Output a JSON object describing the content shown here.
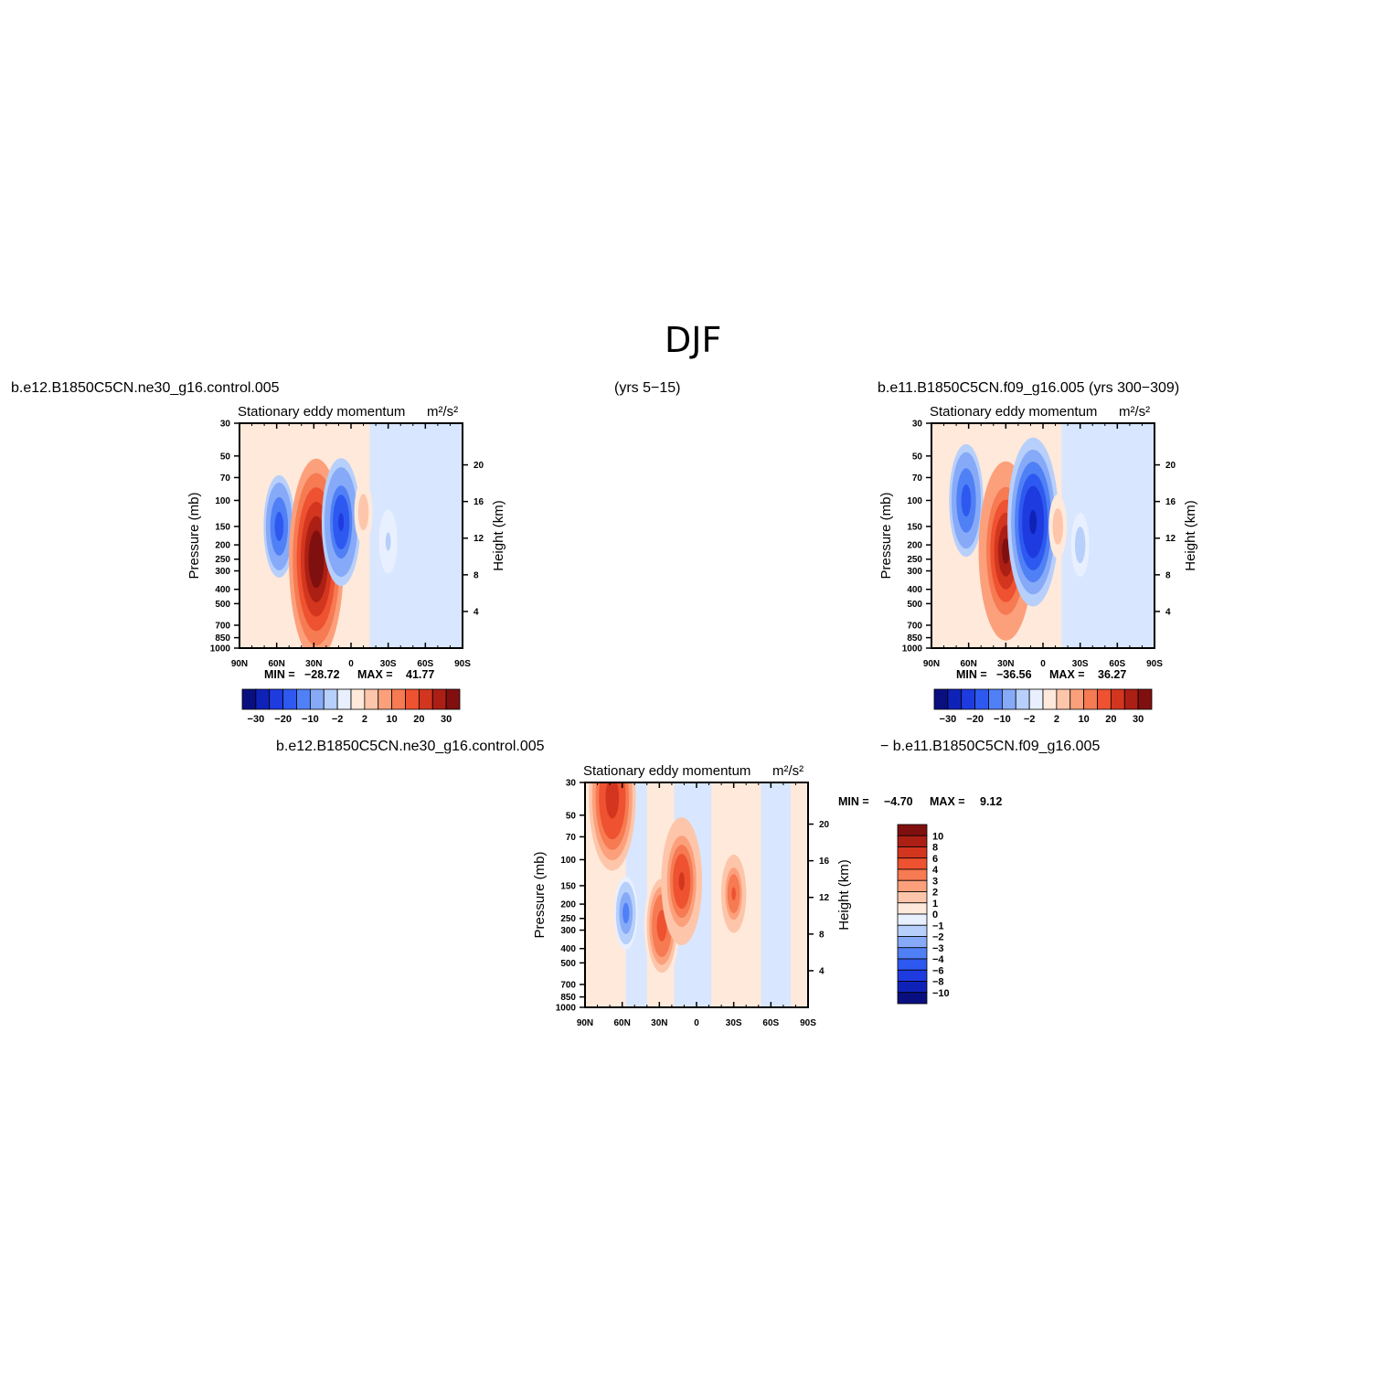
{
  "figure": {
    "title": "DJF",
    "left_case": "b.e12.B1850C5CN.ne30_g16.control.005",
    "left_years": "(yrs 5−15)",
    "right_case": "b.e11.B1850C5CN.f09_g16.005 (yrs 300−309)",
    "diff_left": "b.e12.B1850C5CN.ne30_g16.control.005",
    "diff_right": "− b.e11.B1850C5CN.f09_g16.005"
  },
  "chart_data": [
    {
      "type": "heatmap",
      "panel": "case-1",
      "title": "Stationary eddy momentum",
      "units": "m²/s²",
      "ylabel": "Pressure (mb)",
      "ylabel_right": "Height (km)",
      "x_ticks": [
        "90N",
        "60N",
        "30N",
        "0",
        "30S",
        "60S",
        "90S"
      ],
      "xlim": [
        90,
        -90
      ],
      "y_ticks": [
        30,
        50,
        70,
        100,
        150,
        200,
        250,
        300,
        400,
        500,
        700,
        850,
        1000
      ],
      "y_scale": "log",
      "ylim": [
        1000,
        30
      ],
      "height_ticks": [
        4,
        8,
        12,
        16,
        20
      ],
      "min_label": "MIN =",
      "min": "−28.72",
      "max_label": "MAX =",
      "max": "41.77",
      "colorbar": {
        "orientation": "horizontal",
        "labels": [
          "−30",
          "−20",
          "−10",
          "−2",
          "2",
          "10",
          "20",
          "30"
        ],
        "colors": [
          "#0a0f80",
          "#0f22b8",
          "#1e3be0",
          "#2e59f0",
          "#5080f5",
          "#86aaf8",
          "#b7cffb",
          "#e8f0ff",
          "#ffe9db",
          "#fdc6aa",
          "#fca07c",
          "#f67a52",
          "#ee5230",
          "#d3361e",
          "#ab1f14",
          "#801010"
        ]
      },
      "features": [
        {
          "lat": 58,
          "p": 150,
          "value": -20
        },
        {
          "lat": 28,
          "p": 250,
          "value": 40
        },
        {
          "lat": 8,
          "p": 140,
          "value": -25
        },
        {
          "lat": -10,
          "p": 120,
          "value": 4
        },
        {
          "lat": -30,
          "p": 190,
          "value": -3
        }
      ]
    },
    {
      "type": "heatmap",
      "panel": "case-2",
      "title": "Stationary eddy momentum",
      "units": "m²/s²",
      "ylabel": "Pressure (mb)",
      "ylabel_right": "Height (km)",
      "x_ticks": [
        "90N",
        "60N",
        "30N",
        "0",
        "30S",
        "60S",
        "90S"
      ],
      "xlim": [
        90,
        -90
      ],
      "y_ticks": [
        30,
        50,
        70,
        100,
        150,
        200,
        250,
        300,
        400,
        500,
        700,
        850,
        1000
      ],
      "y_scale": "log",
      "ylim": [
        1000,
        30
      ],
      "height_ticks": [
        4,
        8,
        12,
        16,
        20
      ],
      "min_label": "MIN =",
      "min": "−36.56",
      "max_label": "MAX =",
      "max": "36.27",
      "colorbar": {
        "orientation": "horizontal",
        "labels": [
          "−30",
          "−20",
          "−10",
          "−2",
          "2",
          "10",
          "20",
          "30"
        ],
        "colors": [
          "#0a0f80",
          "#0f22b8",
          "#1e3be0",
          "#2e59f0",
          "#5080f5",
          "#86aaf8",
          "#b7cffb",
          "#e8f0ff",
          "#ffe9db",
          "#fdc6aa",
          "#fca07c",
          "#f67a52",
          "#ee5230",
          "#d3361e",
          "#ab1f14",
          "#801010"
        ]
      },
      "features": [
        {
          "lat": 62,
          "p": 100,
          "value": -22
        },
        {
          "lat": 30,
          "p": 220,
          "value": 35
        },
        {
          "lat": 8,
          "p": 140,
          "value": -33
        },
        {
          "lat": -12,
          "p": 150,
          "value": 4
        },
        {
          "lat": -30,
          "p": 200,
          "value": -5
        }
      ]
    },
    {
      "type": "heatmap",
      "panel": "difference",
      "title": "Stationary eddy momentum",
      "units": "m²/s²",
      "ylabel": "Pressure (mb)",
      "ylabel_right": "Height (km)",
      "x_ticks": [
        "90N",
        "60N",
        "30N",
        "0",
        "30S",
        "60S",
        "90S"
      ],
      "xlim": [
        90,
        -90
      ],
      "y_ticks": [
        30,
        50,
        70,
        100,
        150,
        200,
        250,
        300,
        400,
        500,
        700,
        850,
        1000
      ],
      "y_scale": "log",
      "ylim": [
        1000,
        30
      ],
      "height_ticks": [
        4,
        8,
        12,
        16,
        20
      ],
      "min_label": "MIN =",
      "min": "−4.70",
      "max_label": "MAX =",
      "max": "9.12",
      "colorbar": {
        "orientation": "vertical",
        "labels": [
          "10",
          "8",
          "6",
          "4",
          "3",
          "2",
          "1",
          "0",
          "−1",
          "−2",
          "−3",
          "−4",
          "−6",
          "−8",
          "−10"
        ],
        "colors": [
          "#801010",
          "#ab1f14",
          "#d3361e",
          "#ee5230",
          "#f67a52",
          "#fca07c",
          "#fdc6aa",
          "#ffe9db",
          "#e8f0ff",
          "#b7cffb",
          "#86aaf8",
          "#5080f5",
          "#2e59f0",
          "#1e3be0",
          "#0f22b8",
          "#0a0f80"
        ]
      },
      "features": [
        {
          "lat": 68,
          "p": 38,
          "value": 8
        },
        {
          "lat": 57,
          "p": 230,
          "value": -4
        },
        {
          "lat": 28,
          "p": 280,
          "value": 6
        },
        {
          "lat": 12,
          "p": 140,
          "value": 7
        },
        {
          "lat": -30,
          "p": 170,
          "value": 5
        }
      ]
    }
  ]
}
